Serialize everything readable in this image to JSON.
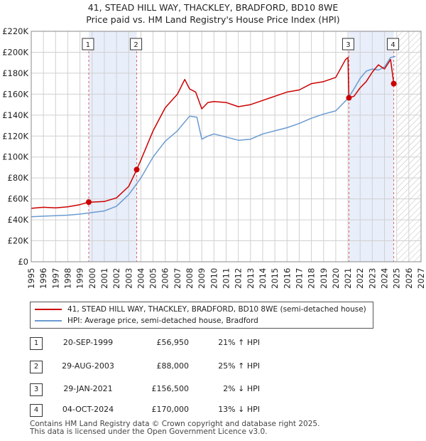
{
  "title_line1": "41, STEAD HILL WAY, THACKLEY, BRADFORD, BD10 8WE",
  "title_line2": "Price paid vs. HM Land Registry's House Price Index (HPI)",
  "colors": {
    "property": "#cc0000",
    "hpi": "#6b9bd1",
    "shade": "#e8eefa",
    "grid": "#d0d0d0",
    "vline": "#e06060"
  },
  "legend": {
    "property": "41, STEAD HILL WAY, THACKLEY, BRADFORD, BD10 8WE (semi-detached house)",
    "hpi": "HPI: Average price, semi-detached house, Bradford"
  },
  "transactions": [
    {
      "num": "1",
      "date": "20-SEP-1999",
      "price": "£56,950",
      "hpi": "21% ↑ HPI"
    },
    {
      "num": "2",
      "date": "29-AUG-2003",
      "price": "£88,000",
      "hpi": "25% ↑ HPI"
    },
    {
      "num": "3",
      "date": "29-JAN-2021",
      "price": "£156,500",
      "hpi": "2% ↓ HPI"
    },
    {
      "num": "4",
      "date": "04-OCT-2024",
      "price": "£170,000",
      "hpi": "13% ↓ HPI"
    }
  ],
  "footer_line1": "Contains HM Land Registry data © Crown copyright and database right 2025.",
  "footer_line2": "This data is licensed under the Open Government Licence v3.0.",
  "chart_data": {
    "type": "line",
    "title": "41, STEAD HILL WAY, THACKLEY, BRADFORD, BD10 8WE — Price paid vs. HM Land Registry's House Price Index (HPI)",
    "xlim": [
      1995,
      2027
    ],
    "ylim": [
      0,
      220000
    ],
    "x_ticks": [
      1995,
      1996,
      1997,
      1998,
      1999,
      2000,
      2001,
      2002,
      2003,
      2004,
      2005,
      2006,
      2007,
      2008,
      2009,
      2010,
      2011,
      2012,
      2013,
      2014,
      2015,
      2016,
      2017,
      2018,
      2019,
      2020,
      2021,
      2022,
      2023,
      2024,
      2025,
      2026,
      2027
    ],
    "y_ticks": [
      0,
      20000,
      40000,
      60000,
      80000,
      100000,
      120000,
      140000,
      160000,
      180000,
      200000,
      220000
    ],
    "y_tick_labels": [
      "£0",
      "£20K",
      "£40K",
      "£60K",
      "£80K",
      "£100K",
      "£120K",
      "£140K",
      "£160K",
      "£180K",
      "£200K",
      "£220K"
    ],
    "shaded_ranges": [
      [
        1999.72,
        2003.66
      ],
      [
        2021.08,
        2024.76
      ]
    ],
    "future_hatch_from": 2025.0,
    "sales": [
      {
        "label": "1",
        "x": 1999.72,
        "y": 56950
      },
      {
        "label": "2",
        "x": 2003.66,
        "y": 88000
      },
      {
        "label": "3",
        "x": 2021.08,
        "y": 156500
      },
      {
        "label": "4",
        "x": 2024.76,
        "y": 170000
      }
    ],
    "series": [
      {
        "name": "41, STEAD HILL WAY, THACKLEY, BRADFORD, BD10 8WE (semi-detached house)",
        "x": [
          1995,
          1996,
          1997,
          1998,
          1999,
          1999.72,
          2000,
          2001,
          2002,
          2003,
          2003.66,
          2004,
          2005,
          2006,
          2007,
          2007.6,
          2008,
          2008.5,
          2009,
          2009.5,
          2010,
          2011,
          2012,
          2013,
          2014,
          2015,
          2016,
          2017,
          2018,
          2019,
          2020,
          2020.8,
          2021.0,
          2021.08,
          2021.5,
          2022,
          2022.5,
          2023,
          2023.5,
          2024,
          2024.5,
          2024.76,
          2024.9
        ],
        "y": [
          51000,
          52000,
          51500,
          52500,
          54500,
          56950,
          57000,
          57500,
          61000,
          72000,
          88000,
          97000,
          125000,
          147000,
          160000,
          174000,
          165000,
          162000,
          146000,
          152000,
          153000,
          152000,
          148000,
          150000,
          154000,
          158000,
          162000,
          164000,
          170000,
          172000,
          176000,
          193000,
          195000,
          156500,
          158000,
          166000,
          172000,
          181000,
          188000,
          184000,
          193000,
          170000,
          170000
        ]
      },
      {
        "name": "HPI: Average price, semi-detached house, Bradford",
        "x": [
          1995,
          1996,
          1997,
          1998,
          1999,
          2000,
          2001,
          2002,
          2003,
          2004,
          2005,
          2006,
          2007,
          2008,
          2008.6,
          2009,
          2009.5,
          2010,
          2011,
          2012,
          2013,
          2014,
          2015,
          2016,
          2017,
          2018,
          2019,
          2020,
          2021,
          2021.5,
          2022,
          2022.5,
          2023,
          2023.5,
          2024,
          2024.5,
          2024.9
        ],
        "y": [
          43000,
          43500,
          44000,
          44500,
          45500,
          47000,
          48500,
          53000,
          64000,
          80000,
          100000,
          115000,
          125000,
          139000,
          138000,
          117000,
          120000,
          122000,
          119000,
          116000,
          117000,
          122000,
          125000,
          128000,
          132000,
          137000,
          141000,
          144000,
          156000,
          165000,
          175000,
          182000,
          184000,
          183000,
          186000,
          195000,
          196000
        ]
      }
    ]
  }
}
